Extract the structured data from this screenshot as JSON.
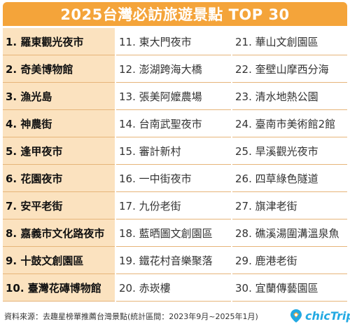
{
  "title": "2025台灣必訪旅遊景點 TOP 30",
  "columns": [
    {
      "items": [
        "1. 羅東觀光夜市",
        "2. 奇美博物館",
        "3. 漁光島",
        "4. 神農街",
        "5. 逢甲夜市",
        "6. 花園夜市",
        "7. 安平老街",
        "8. 嘉義市文化路夜市",
        "9. 十鼓文創園區",
        "10. 臺灣花磚博物館"
      ]
    },
    {
      "items": [
        "11. 東大門夜市",
        "12. 澎湖跨海大橋",
        "13. 張美阿嬤農場",
        "14. 台南武聖夜市",
        "15. 審計新村",
        "16. 一中街夜市",
        "17. 九份老街",
        "18. 藍晒圖文創園區",
        "19. 鐵花村音樂聚落",
        "20. 赤崁樓"
      ]
    },
    {
      "items": [
        "21. 華山文創園區",
        "22. 奎壁山摩西分海",
        "23. 清水地熱公園",
        "24. 臺南市美術館2館",
        "25. 旱溪觀光夜市",
        "26. 四草綠色隧道",
        "27. 旗津老街",
        "28. 礁溪湯圍溝溫泉魚",
        "29. 鹿港老街",
        "30. 宜蘭傳藝園區"
      ]
    }
  ],
  "footer": {
    "source": "資料來源：去趣星榜單推薦台灣景點(統計區間：2023年9月~2025年1月)"
  },
  "logo": {
    "text": "chicTrip",
    "icon": "chictrip-logo-icon",
    "color": "#22a9e2"
  },
  "colors": {
    "title_bar": "#f4a43a",
    "top_column": "#fbe2bf",
    "divider": "#e6b57a"
  }
}
